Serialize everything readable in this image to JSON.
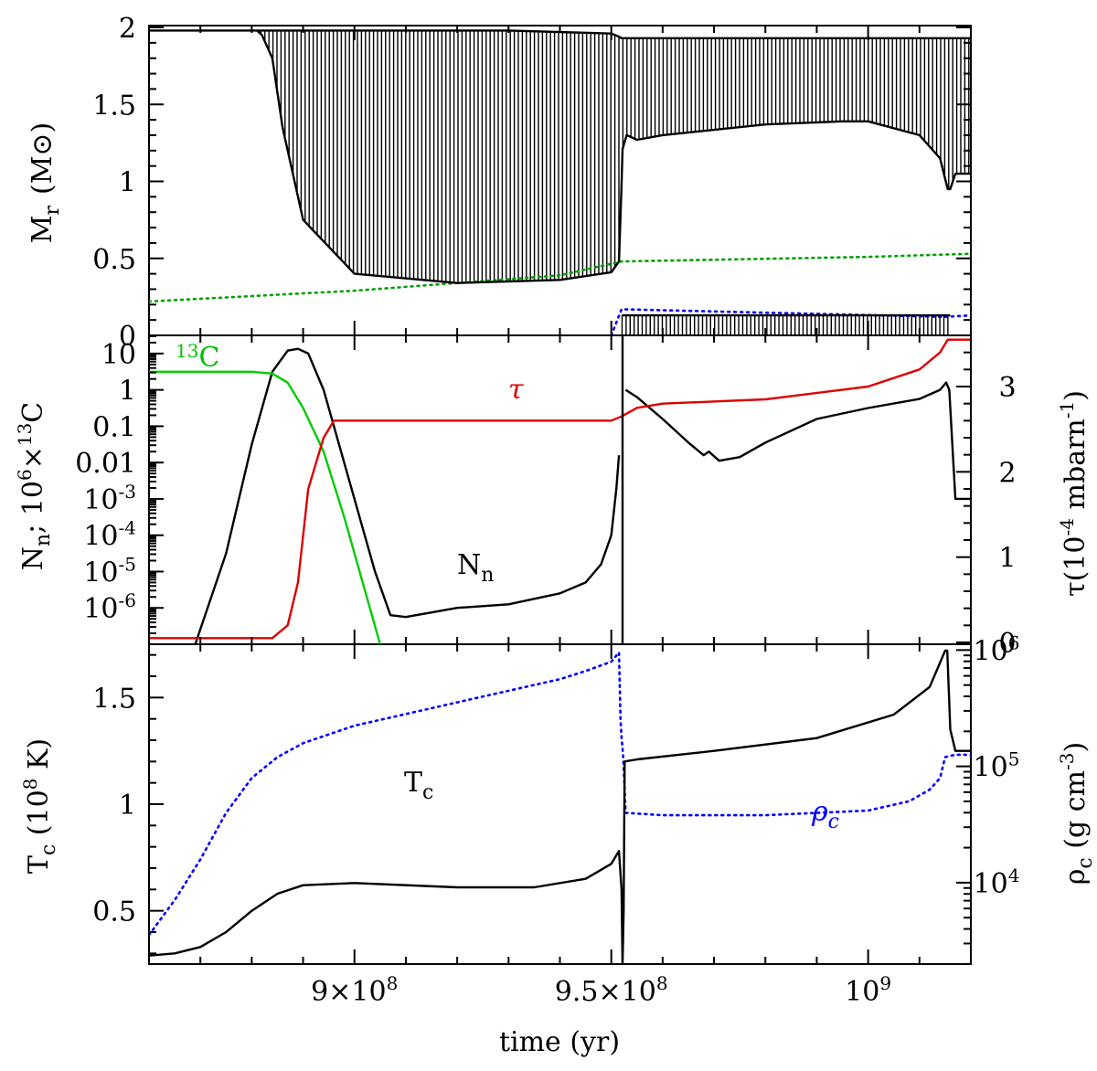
{
  "chart_data": [
    {
      "type": "area",
      "panel": "top",
      "ylabel": "M",
      "ylabel_sub": "r",
      "ylabel_unit": "(M⊙)",
      "ylim": [
        0,
        2
      ],
      "yticks": [
        "0",
        "0.5",
        "1",
        "1.5",
        "2"
      ],
      "xlim": [
        860000000,
        1020000000
      ],
      "fill": "vertical hatching",
      "series": [
        {
          "role": "convective upper boundary",
          "color": "#000000",
          "x": [
            860000000,
            881000000,
            882000000,
            884000000,
            886000000,
            890000000,
            900000000,
            920000000,
            940000000,
            950000000,
            951500000,
            952000000,
            952200000,
            953000000,
            955000000,
            960000000,
            980000000,
            995000000,
            1000000000,
            1010000000,
            1014000000,
            1015500000,
            1016000000,
            1017000000,
            1020000000
          ],
          "y": [
            1.98,
            1.98,
            1.95,
            1.8,
            1.35,
            0.75,
            0.4,
            0.34,
            0.36,
            0.41,
            0.48,
            0.98,
            1.21,
            1.3,
            1.27,
            1.3,
            1.37,
            1.39,
            1.39,
            1.3,
            1.15,
            0.95,
            0.95,
            1.05,
            1.05
          ]
        },
        {
          "role": "envelope surface",
          "color": "#000000",
          "x": [
            881000000,
            930000000,
            950000000,
            951500000,
            952000000,
            1020000000
          ],
          "y": [
            1.98,
            1.98,
            1.96,
            1.94,
            1.93,
            1.93
          ]
        },
        {
          "role": "H-free core mass",
          "color": "#00a000",
          "style": "dotted",
          "x": [
            860000000,
            900000000,
            940000000,
            952000000,
            1000000000,
            1020000000
          ],
          "y": [
            0.22,
            0.29,
            0.39,
            0.48,
            0.51,
            0.53
          ]
        },
        {
          "role": "central convective core",
          "color": "#000000",
          "x": [
            952100000,
            1016000000
          ],
          "y": [
            0.13,
            0.13
          ]
        },
        {
          "role": "He-free core mass",
          "color": "#0000ff",
          "style": "dotted",
          "x": [
            950000000,
            952000000,
            1015000000,
            1020000000
          ],
          "y": [
            0.0,
            0.17,
            0.12,
            0.13
          ]
        }
      ]
    },
    {
      "type": "line",
      "panel": "middle",
      "ylabel": "N_n ; 10^6×13C",
      "ylabel_right": "τ(10^-4 mbarn^-1)",
      "ylim_log10": [
        -7,
        1.5
      ],
      "yticks": [
        "10^-6",
        "10^-5",
        "10^-4",
        "10^-3",
        "0.01",
        "0.1",
        "1",
        "10"
      ],
      "yticks_right": [
        "0",
        "1",
        "2",
        "3"
      ],
      "ylim_right": [
        0,
        3.6
      ],
      "annotations": [
        {
          "text": "13C",
          "color": "#00c000"
        },
        {
          "text": "τ",
          "color": "#e00000"
        },
        {
          "text": "N_n",
          "color": "#000000"
        }
      ],
      "series": [
        {
          "role": "N_n",
          "color": "#000000",
          "axis": "left-log",
          "x": [
            869000000,
            875000000,
            880000000,
            884000000,
            887000000,
            889000000,
            891000000,
            894000000,
            899000000,
            904000000,
            907000000,
            910000000,
            920000000,
            930000000,
            940000000,
            945000000,
            948000000,
            950000000,
            951000000,
            951500000
          ],
          "y": [
            -7,
            -4.5,
            -1.5,
            0.5,
            1.08,
            1.13,
            1.0,
            0.0,
            -2.5,
            -5.0,
            -6.2,
            -6.25,
            -6.0,
            -5.9,
            -5.6,
            -5.3,
            -4.8,
            -4.0,
            -2.7,
            -1.8
          ]
        },
        {
          "role": "N_n",
          "color": "#000000",
          "axis": "left-log",
          "x": [
            952800000,
            955000000,
            960000000,
            965000000,
            968000000,
            969000000,
            971000000,
            975000000,
            980000000,
            990000000,
            1000000000,
            1010000000,
            1014000000,
            1015200000,
            1015800000,
            1017000000,
            1020000000
          ],
          "y": [
            0.0,
            -0.2,
            -0.8,
            -1.45,
            -1.8,
            -1.7,
            -1.95,
            -1.85,
            -1.45,
            -0.8,
            -0.5,
            -0.25,
            0.0,
            0.2,
            0.0,
            -3.0,
            -3.0
          ]
        },
        {
          "role": "13C",
          "color": "#00cc00",
          "axis": "left-log",
          "x": [
            860000000,
            880000000,
            884000000,
            887000000,
            890000000,
            894000000,
            898000000,
            902000000,
            905000000
          ],
          "y": [
            0.5,
            0.5,
            0.45,
            0.2,
            -0.5,
            -1.7,
            -3.5,
            -5.5,
            -7
          ]
        },
        {
          "role": "τ",
          "color": "#dd0000",
          "axis": "right",
          "x": [
            860000000,
            884000000,
            887000000,
            889000000,
            891000000,
            894000000,
            896000000,
            900000000,
            950000000,
            952000000,
            955000000,
            960000000,
            980000000,
            1000000000,
            1010000000,
            1014000000,
            1015500000,
            1020000000
          ],
          "y": [
            0.05,
            0.05,
            0.2,
            0.7,
            1.8,
            2.4,
            2.6,
            2.6,
            2.6,
            2.65,
            2.75,
            2.8,
            2.85,
            3.0,
            3.2,
            3.4,
            3.55,
            3.55
          ]
        },
        {
          "role": "spike",
          "color": "#000000",
          "axis": "left-log",
          "x": [
            952200000,
            952200000
          ],
          "y": [
            -7,
            1.5
          ]
        }
      ]
    },
    {
      "type": "line",
      "panel": "bottom",
      "xlabel": "time (yr)",
      "ylabel": "T_c (10^8 K)",
      "ylabel_right": "ρ_c (g cm^-3)",
      "xticks": [
        "9×10^8",
        "9.5×10^8",
        "10^9"
      ],
      "xtick_values": [
        900000000,
        950000000,
        1000000000
      ],
      "yticks": [
        "0.5",
        "1",
        "1.5"
      ],
      "ylim": [
        0.25,
        1.75
      ],
      "yticks_right": [
        "10^4",
        "10^5",
        "10^6"
      ],
      "ylim_right_log10": [
        3.3,
        6.05
      ],
      "annotations": [
        {
          "text": "T_c",
          "color": "#000000"
        },
        {
          "text": "ρ_c",
          "color": "#0000ff"
        }
      ],
      "series": [
        {
          "role": "T_c",
          "color": "#000000",
          "axis": "left",
          "x": [
            860000000,
            865000000,
            870000000,
            875000000,
            880000000,
            885000000,
            890000000,
            900000000,
            920000000,
            935000000,
            945000000,
            950000000,
            951500000,
            952000000,
            952200000,
            952400000,
            952600000,
            955000000,
            970000000,
            990000000,
            1005000000,
            1012000000,
            1015000000,
            1015400000,
            1016000000,
            1017000000,
            1020000000
          ],
          "y": [
            0.29,
            0.3,
            0.33,
            0.4,
            0.5,
            0.58,
            0.62,
            0.63,
            0.61,
            0.61,
            0.65,
            0.72,
            0.78,
            0.6,
            0.25,
            0.5,
            1.2,
            1.21,
            1.25,
            1.31,
            1.42,
            1.55,
            1.72,
            1.72,
            1.35,
            1.25,
            1.25
          ]
        },
        {
          "role": "ρ_c",
          "color": "#0000ff",
          "style": "dotted",
          "axis": "right-log",
          "x": [
            860000000,
            865000000,
            870000000,
            875000000,
            880000000,
            885000000,
            890000000,
            900000000,
            910000000,
            920000000,
            930000000,
            940000000,
            945000000,
            950000000,
            951500000,
            951800000,
            952000000,
            952300000,
            952800000,
            960000000,
            980000000,
            1000000000,
            1008000000,
            1012000000,
            1014000000,
            1015000000,
            1017000000,
            1020000000
          ],
          "y": [
            3.55,
            3.85,
            4.2,
            4.6,
            4.9,
            5.08,
            5.2,
            5.35,
            5.45,
            5.55,
            5.65,
            5.75,
            5.82,
            5.9,
            5.98,
            5.4,
            5.25,
            5.1,
            4.6,
            4.58,
            4.58,
            4.62,
            4.7,
            4.8,
            4.9,
            5.08,
            5.1,
            5.1
          ]
        }
      ]
    }
  ]
}
